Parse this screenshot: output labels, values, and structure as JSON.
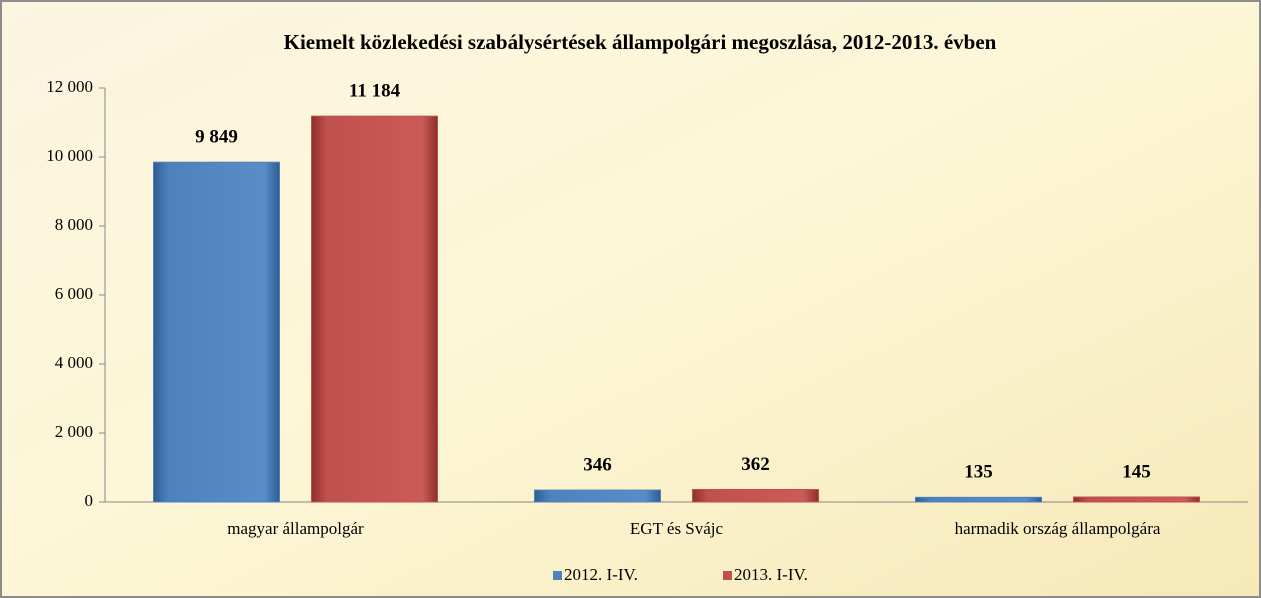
{
  "chart_data": {
    "type": "bar",
    "title": "Kiemelt közlekedési szabálysértések állampolgári megoszlása, 2012-2013. évben",
    "categories": [
      "magyar állampolgár",
      "EGT és Svájc",
      "harmadik ország állampolgára"
    ],
    "series": [
      {
        "name": "2012. I-IV.",
        "color": "#4f81bd",
        "values": [
          9849,
          346,
          135
        ],
        "value_labels": [
          "9 849",
          "346",
          "135"
        ]
      },
      {
        "name": "2013. I-IV.",
        "color": "#c0504d",
        "values": [
          11184,
          362,
          145
        ],
        "value_labels": [
          "11 184",
          "362",
          "145"
        ]
      }
    ],
    "ylim": [
      0,
      12000
    ],
    "yticks": [
      0,
      {
        "value": 2000,
        "label": "2 000"
      },
      {
        "value": 4000,
        "label": "4 000"
      },
      {
        "value": 6000,
        "label": "6 000"
      },
      {
        "value": 8000,
        "label": "8 000"
      },
      {
        "value": 10000,
        "label": "10 000"
      },
      {
        "value": 12000,
        "label": "12 000"
      }
    ],
    "grid": false,
    "legend": "bottom"
  }
}
